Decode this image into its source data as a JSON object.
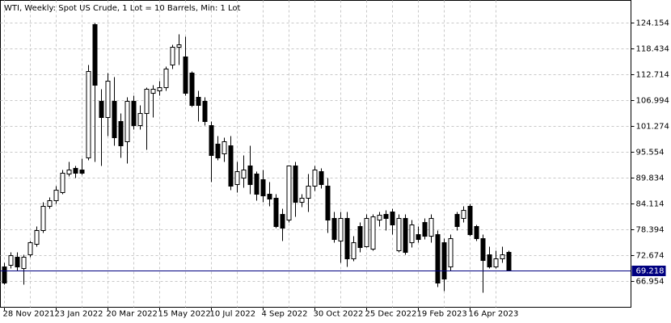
{
  "chart_data": {
    "type": "candlestick",
    "title": "WTI, Weekly:  Spot US Crude, 1 Lot = 10 Barrels, Min: 1 Lot",
    "categories": [
      "28 Nov 2021",
      null,
      null,
      null,
      null,
      null,
      null,
      null,
      "23 Jan 2022",
      null,
      null,
      null,
      null,
      null,
      null,
      null,
      "20 Mar 2022",
      null,
      null,
      null,
      null,
      null,
      null,
      null,
      "15 May 2022",
      null,
      null,
      null,
      null,
      null,
      null,
      null,
      "10 Jul 2022",
      null,
      null,
      null,
      null,
      null,
      null,
      null,
      "4 Sep 2022",
      null,
      null,
      null,
      null,
      null,
      null,
      null,
      "30 Oct 2022",
      null,
      null,
      null,
      null,
      null,
      null,
      null,
      "25 Dec 2022",
      null,
      null,
      null,
      null,
      null,
      null,
      null,
      "19 Feb 2023",
      null,
      null,
      null,
      null,
      null,
      null,
      null,
      "16 Apr 2023",
      null,
      null,
      null,
      null,
      null,
      null
    ],
    "open": [
      69.99,
      70.35,
      72.14,
      69.63,
      72.67,
      75.0,
      78.04,
      83.4,
      84.65,
      86.44,
      90.55,
      91.8,
      91.44,
      94.12,
      123.62,
      106.64,
      103.06,
      106.64,
      102.17,
      97.7,
      106.64,
      101.27,
      103.95,
      108.42,
      108.96,
      109.67,
      114.68,
      118.61,
      116.47,
      112.89,
      107.53,
      106.64,
      101.27,
      97.16,
      95.02,
      96.8,
      88.22,
      89.65,
      92.34,
      90.55,
      89.3,
      86.08,
      85.19,
      81.61,
      80.36,
      92.34,
      84.29,
      85.19,
      87.87,
      91.08,
      87.87,
      80.72,
      75.71,
      80.72,
      71.78,
      78.93,
      74.46,
      73.92,
      80.36,
      81.61,
      82.15,
      73.57,
      80.72,
      75.35,
      77.14,
      79.82,
      76.78,
      77.14,
      75.35,
      69.99,
      81.61,
      80.72,
      83.4,
      78.93,
      76.25,
      72.67,
      69.99,
      71.78,
      73.21
    ],
    "high": [
      70.89,
      73.21,
      73.21,
      72.67,
      75.71,
      78.93,
      84.29,
      85.36,
      87.87,
      91.44,
      93.23,
      92.34,
      93.95,
      114.68,
      123.98,
      109.32,
      112.89,
      112.0,
      103.95,
      107.53,
      107.89,
      105.74,
      109.67,
      110.21,
      111.1,
      114.32,
      119.15,
      121.47,
      120.94,
      113.25,
      108.96,
      107.53,
      102.17,
      98.95,
      98.59,
      98.95,
      93.23,
      94.66,
      96.8,
      91.08,
      91.44,
      88.76,
      86.08,
      82.86,
      92.34,
      93.23,
      86.08,
      90.55,
      92.34,
      91.8,
      89.65,
      82.15,
      82.15,
      82.15,
      76.78,
      79.82,
      81.61,
      81.61,
      82.15,
      82.5,
      82.86,
      81.61,
      81.61,
      80.36,
      78.93,
      80.72,
      81.61,
      78.04,
      76.25,
      77.14,
      82.15,
      83.4,
      83.93,
      79.29,
      77.14,
      74.46,
      73.57,
      74.46,
      73.57
    ],
    "low": [
      66.06,
      69.63,
      69.1,
      66.06,
      72.14,
      74.46,
      77.5,
      82.86,
      83.93,
      86.08,
      90.01,
      89.65,
      90.37,
      93.59,
      93.23,
      92.34,
      98.95,
      96.8,
      94.12,
      92.87,
      100.38,
      100.38,
      95.91,
      103.06,
      107.89,
      108.96,
      113.79,
      114.68,
      107.89,
      105.38,
      102.17,
      101.27,
      88.76,
      93.59,
      93.23,
      86.97,
      86.44,
      87.51,
      86.08,
      84.65,
      84.29,
      83.4,
      78.57,
      75.71,
      79.82,
      81.07,
      83.22,
      82.15,
      86.79,
      87.33,
      77.5,
      75.35,
      70.89,
      69.99,
      71.24,
      73.21,
      74.28,
      73.57,
      78.93,
      78.04,
      77.14,
      73.21,
      72.67,
      74.28,
      75.35,
      76.07,
      75.35,
      65.52,
      64.63,
      69.1,
      78.04,
      79.82,
      76.78,
      75.71,
      64.27,
      69.63,
      69.63,
      70.89,
      69.1
    ],
    "close": [
      66.42,
      72.49,
      69.99,
      72.14,
      75.35,
      78.04,
      83.4,
      84.65,
      86.97,
      90.73,
      91.44,
      90.73,
      90.73,
      113.25,
      110.21,
      103.06,
      111.1,
      98.59,
      96.8,
      106.64,
      101.27,
      103.95,
      109.32,
      109.32,
      109.67,
      113.79,
      118.61,
      119.15,
      108.42,
      105.74,
      105.74,
      102.17,
      94.66,
      94.12,
      97.7,
      87.87,
      91.08,
      91.44,
      88.22,
      86.08,
      85.72,
      85.01,
      78.93,
      78.57,
      92.34,
      84.29,
      85.19,
      87.87,
      91.44,
      88.22,
      80.36,
      76.07,
      80.72,
      71.78,
      75.35,
      74.28,
      80.72,
      81.07,
      81.43,
      80.72,
      79.29,
      80.72,
      73.21,
      79.29,
      76.07,
      76.78,
      80.72,
      66.42,
      67.31,
      76.25,
      78.93,
      82.5,
      77.14,
      76.25,
      71.42,
      69.99,
      71.78,
      72.67,
      69.22
    ],
    "up_color": "#ffffff",
    "down_color": "#000000",
    "wick_color": "#000000",
    "ylim": [
      61.06,
      128.98
    ],
    "yticks": [
      124.154,
      118.434,
      112.714,
      106.994,
      101.274,
      95.554,
      89.834,
      84.114,
      78.394,
      72.674,
      66.954
    ],
    "grid": true,
    "last_price": 69.218,
    "last_price_color": "#000080"
  }
}
